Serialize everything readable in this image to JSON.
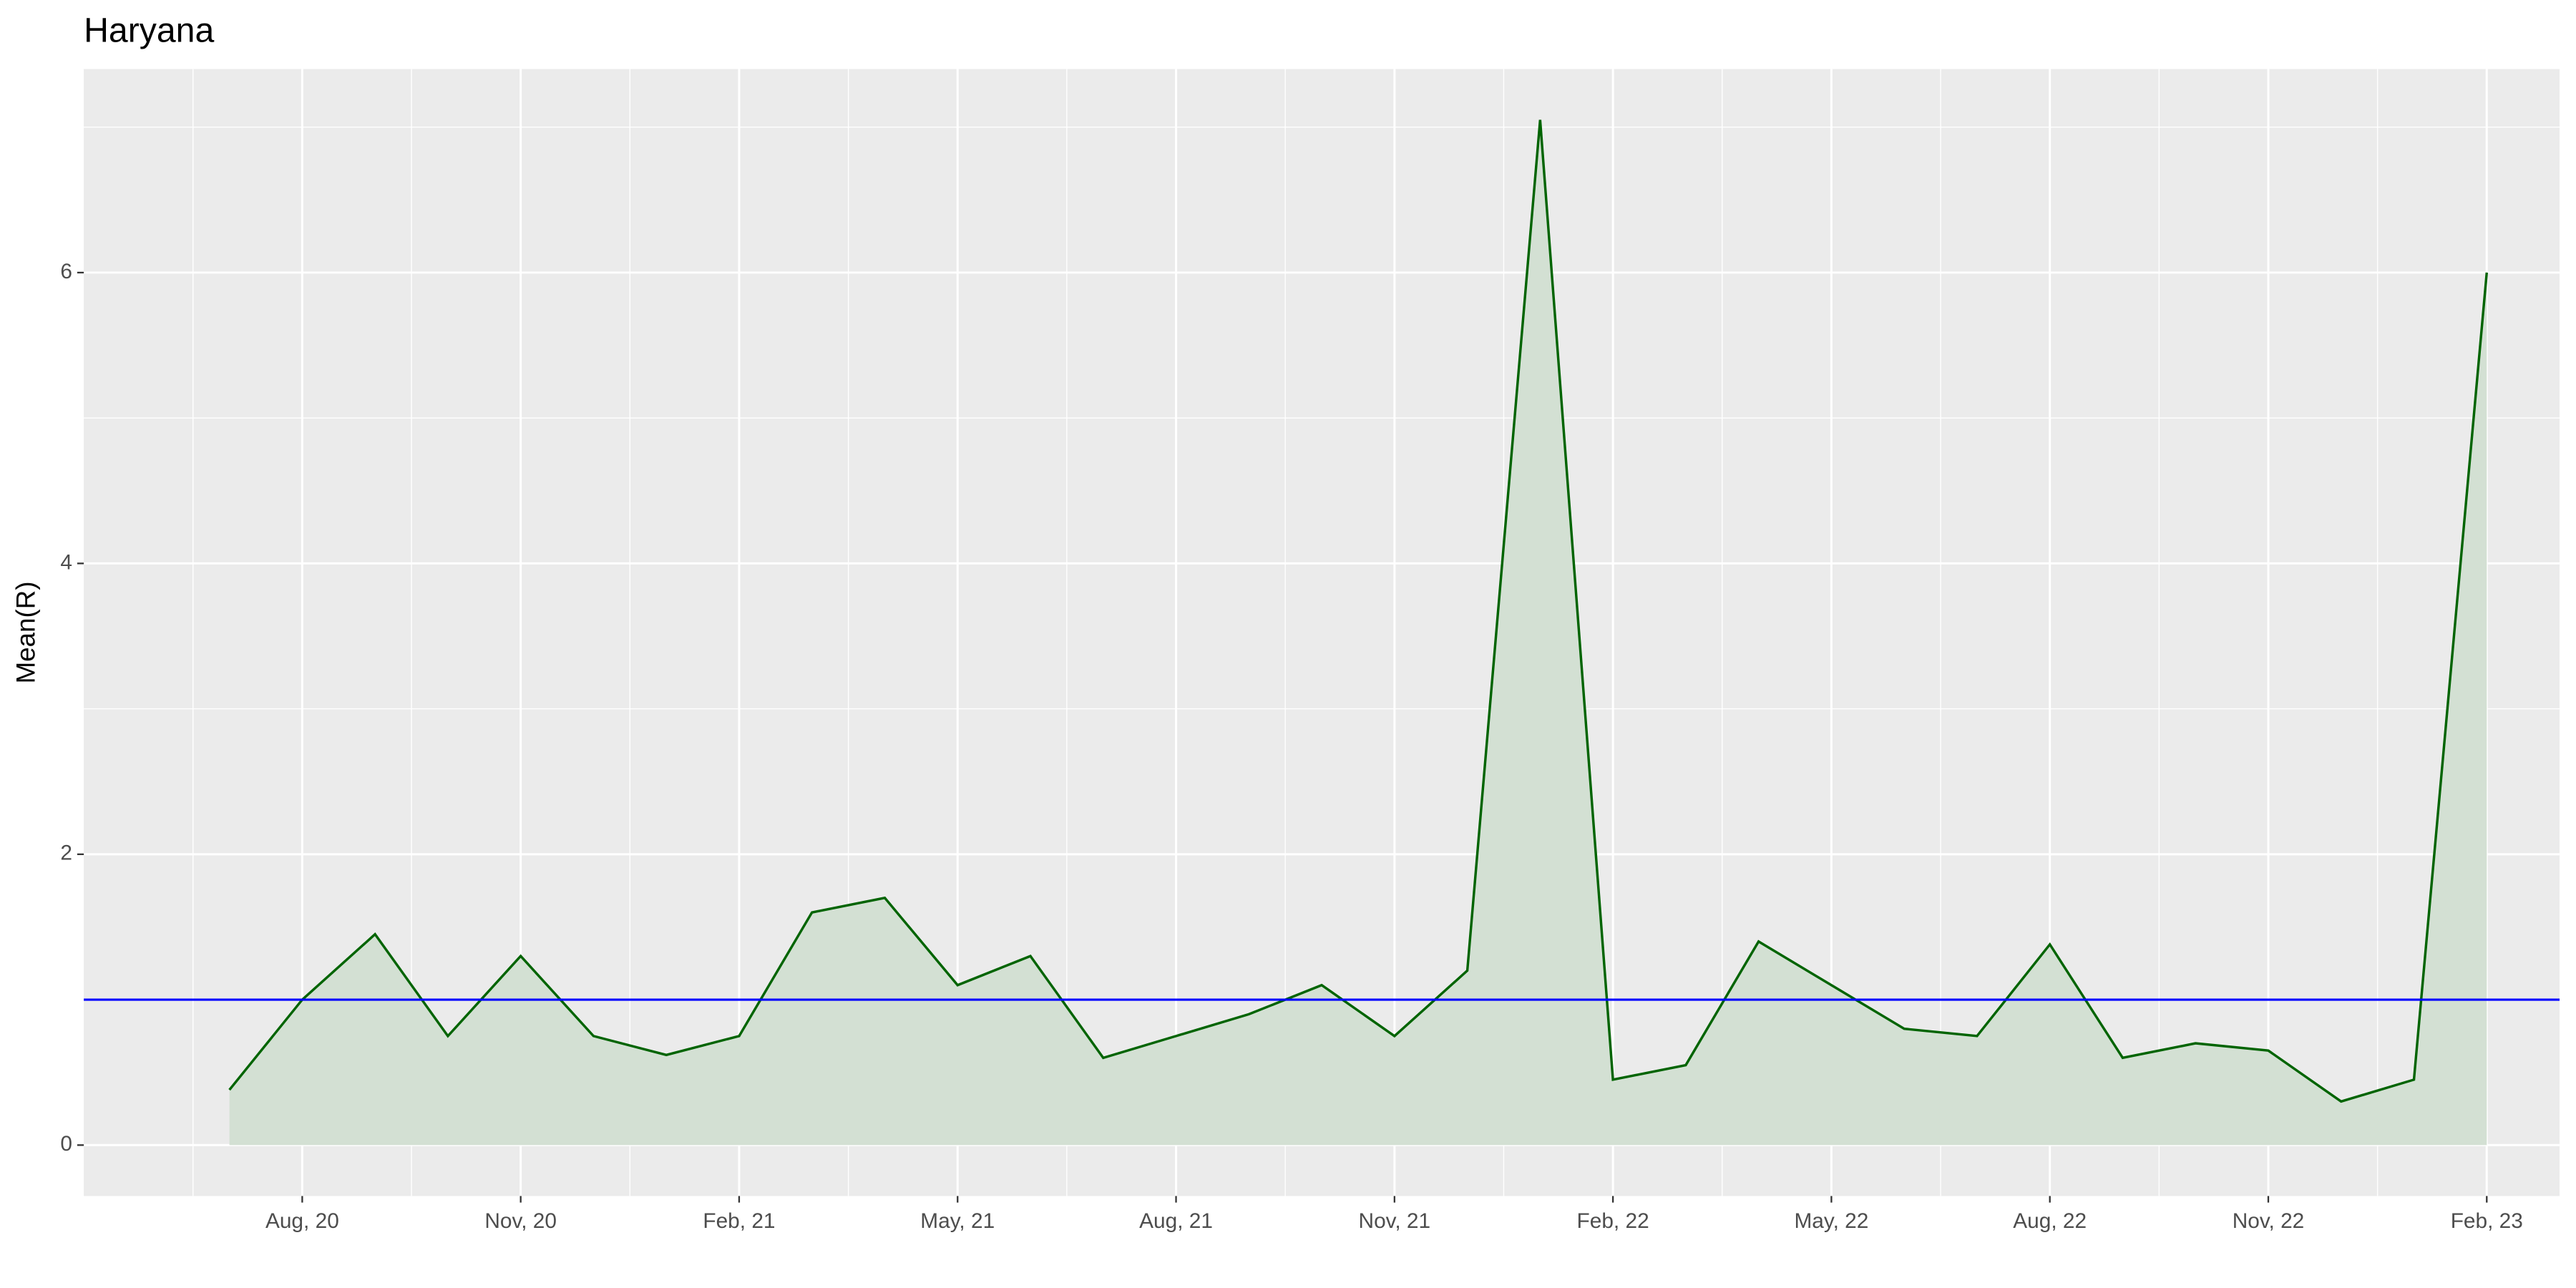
{
  "chart_data": {
    "type": "area",
    "title": "Haryana",
    "y_label": "Mean(R)",
    "x": [
      "2020-07",
      "2020-08",
      "2020-09",
      "2020-10",
      "2020-11",
      "2020-12",
      "2021-01",
      "2021-02",
      "2021-03",
      "2021-04",
      "2021-05",
      "2021-06",
      "2021-07",
      "2021-08",
      "2021-09",
      "2021-10",
      "2021-11",
      "2021-12",
      "2022-01",
      "2022-02",
      "2022-03",
      "2022-04",
      "2022-05",
      "2022-06",
      "2022-07",
      "2022-08",
      "2022-09",
      "2022-10",
      "2022-11",
      "2022-12",
      "2023-01",
      "2023-02"
    ],
    "series": [
      {
        "name": "Mean(R)",
        "color": "#006400",
        "fill": "#d3e0d3",
        "values": [
          0.38,
          1.0,
          1.45,
          0.75,
          1.3,
          0.75,
          0.62,
          0.75,
          1.6,
          1.7,
          1.1,
          1.3,
          0.6,
          0.75,
          0.9,
          1.1,
          0.75,
          1.2,
          7.05,
          0.45,
          0.55,
          1.4,
          1.1,
          0.8,
          0.75,
          1.38,
          0.6,
          0.7,
          0.65,
          0.3,
          0.45,
          6.0
        ]
      }
    ],
    "reference_line": {
      "value": 1,
      "color": "#0000ff"
    },
    "xlim": [
      "2020-05",
      "2023-03"
    ],
    "xticks": [
      {
        "value": "2020-08",
        "label": "Aug, 20"
      },
      {
        "value": "2020-11",
        "label": "Nov, 20"
      },
      {
        "value": "2021-02",
        "label": "Feb, 21"
      },
      {
        "value": "2021-05",
        "label": "May, 21"
      },
      {
        "value": "2021-08",
        "label": "Aug, 21"
      },
      {
        "value": "2021-11",
        "label": "Nov, 21"
      },
      {
        "value": "2022-02",
        "label": "Feb, 22"
      },
      {
        "value": "2022-05",
        "label": "May, 22"
      },
      {
        "value": "2022-08",
        "label": "Aug, 22"
      },
      {
        "value": "2022-11",
        "label": "Nov, 22"
      },
      {
        "value": "2023-02",
        "label": "Feb, 23"
      }
    ],
    "ylim": [
      -0.35,
      7.4
    ],
    "yticks": [
      0,
      2,
      4,
      6
    ],
    "grid": true
  }
}
